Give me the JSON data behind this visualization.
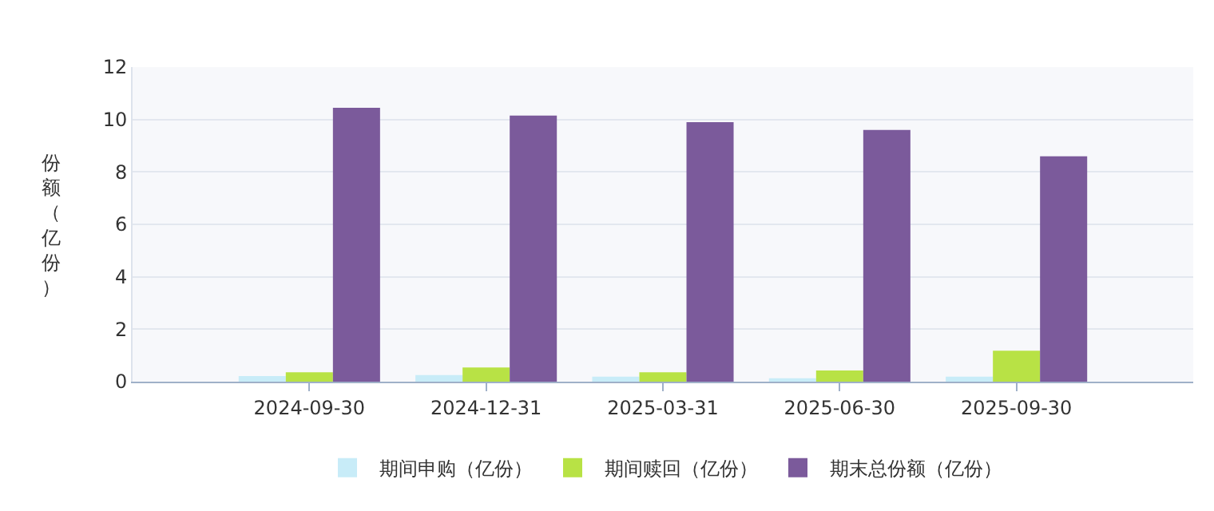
{
  "chart_data": {
    "type": "bar",
    "ylabel": "份额（亿份）",
    "categories": [
      "2024-09-30",
      "2024-12-31",
      "2025-03-31",
      "2025-06-30",
      "2025-09-30"
    ],
    "series": [
      {
        "name": "期间申购（亿份）",
        "color": "#c8ecf8",
        "values": [
          0.21,
          0.25,
          0.19,
          0.13,
          0.19
        ]
      },
      {
        "name": "期间赎回（亿份）",
        "color": "#b8e245",
        "values": [
          0.36,
          0.54,
          0.36,
          0.43,
          1.18
        ]
      },
      {
        "name": "期末总份额（亿份）",
        "color": "#7b5a9b",
        "values": [
          10.45,
          10.15,
          9.9,
          9.6,
          8.6
        ]
      }
    ],
    "ylim": [
      0,
      12
    ],
    "yticks": [
      0,
      2,
      4,
      6,
      8,
      10,
      12
    ],
    "grid": "y",
    "legend": "bottom"
  }
}
